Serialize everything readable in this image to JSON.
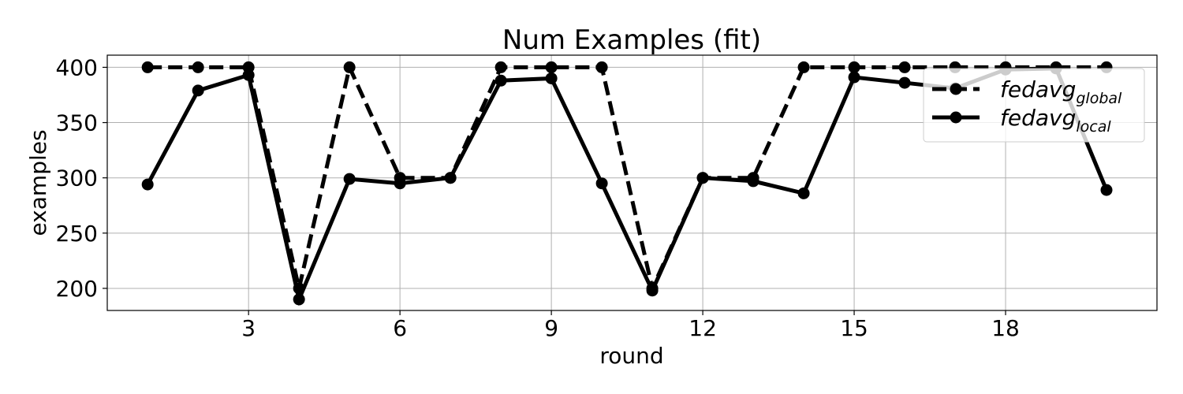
{
  "chart_data": {
    "type": "line",
    "title": "Num Examples (fit)",
    "xlabel": "round",
    "ylabel": "examples",
    "xlim": [
      0.2,
      21.0
    ],
    "ylim": [
      180,
      411
    ],
    "xticks": [
      3,
      6,
      9,
      12,
      15,
      18
    ],
    "yticks": [
      200,
      250,
      300,
      350,
      400
    ],
    "grid": true,
    "legend_position": "top-right",
    "x": [
      1,
      2,
      3,
      4,
      5,
      6,
      7,
      8,
      9,
      10,
      11,
      12,
      13,
      14,
      15,
      16,
      17,
      18,
      19,
      20
    ],
    "series": [
      {
        "name": "fedavg",
        "name_subscript": "global",
        "style": "dashed",
        "color": "#000000",
        "values": [
          400,
          400,
          400,
          200,
          400,
          300,
          300,
          400,
          400,
          400,
          200,
          300,
          300,
          400,
          400,
          400,
          400,
          400,
          400,
          400
        ]
      },
      {
        "name": "fedavg",
        "name_subscript": "local",
        "style": "solid",
        "color": "#000000",
        "values": [
          294,
          379,
          393,
          190,
          299,
          295,
          300,
          388,
          390,
          295,
          198,
          300,
          297,
          286,
          391,
          386,
          381,
          398,
          399,
          289
        ]
      }
    ]
  }
}
